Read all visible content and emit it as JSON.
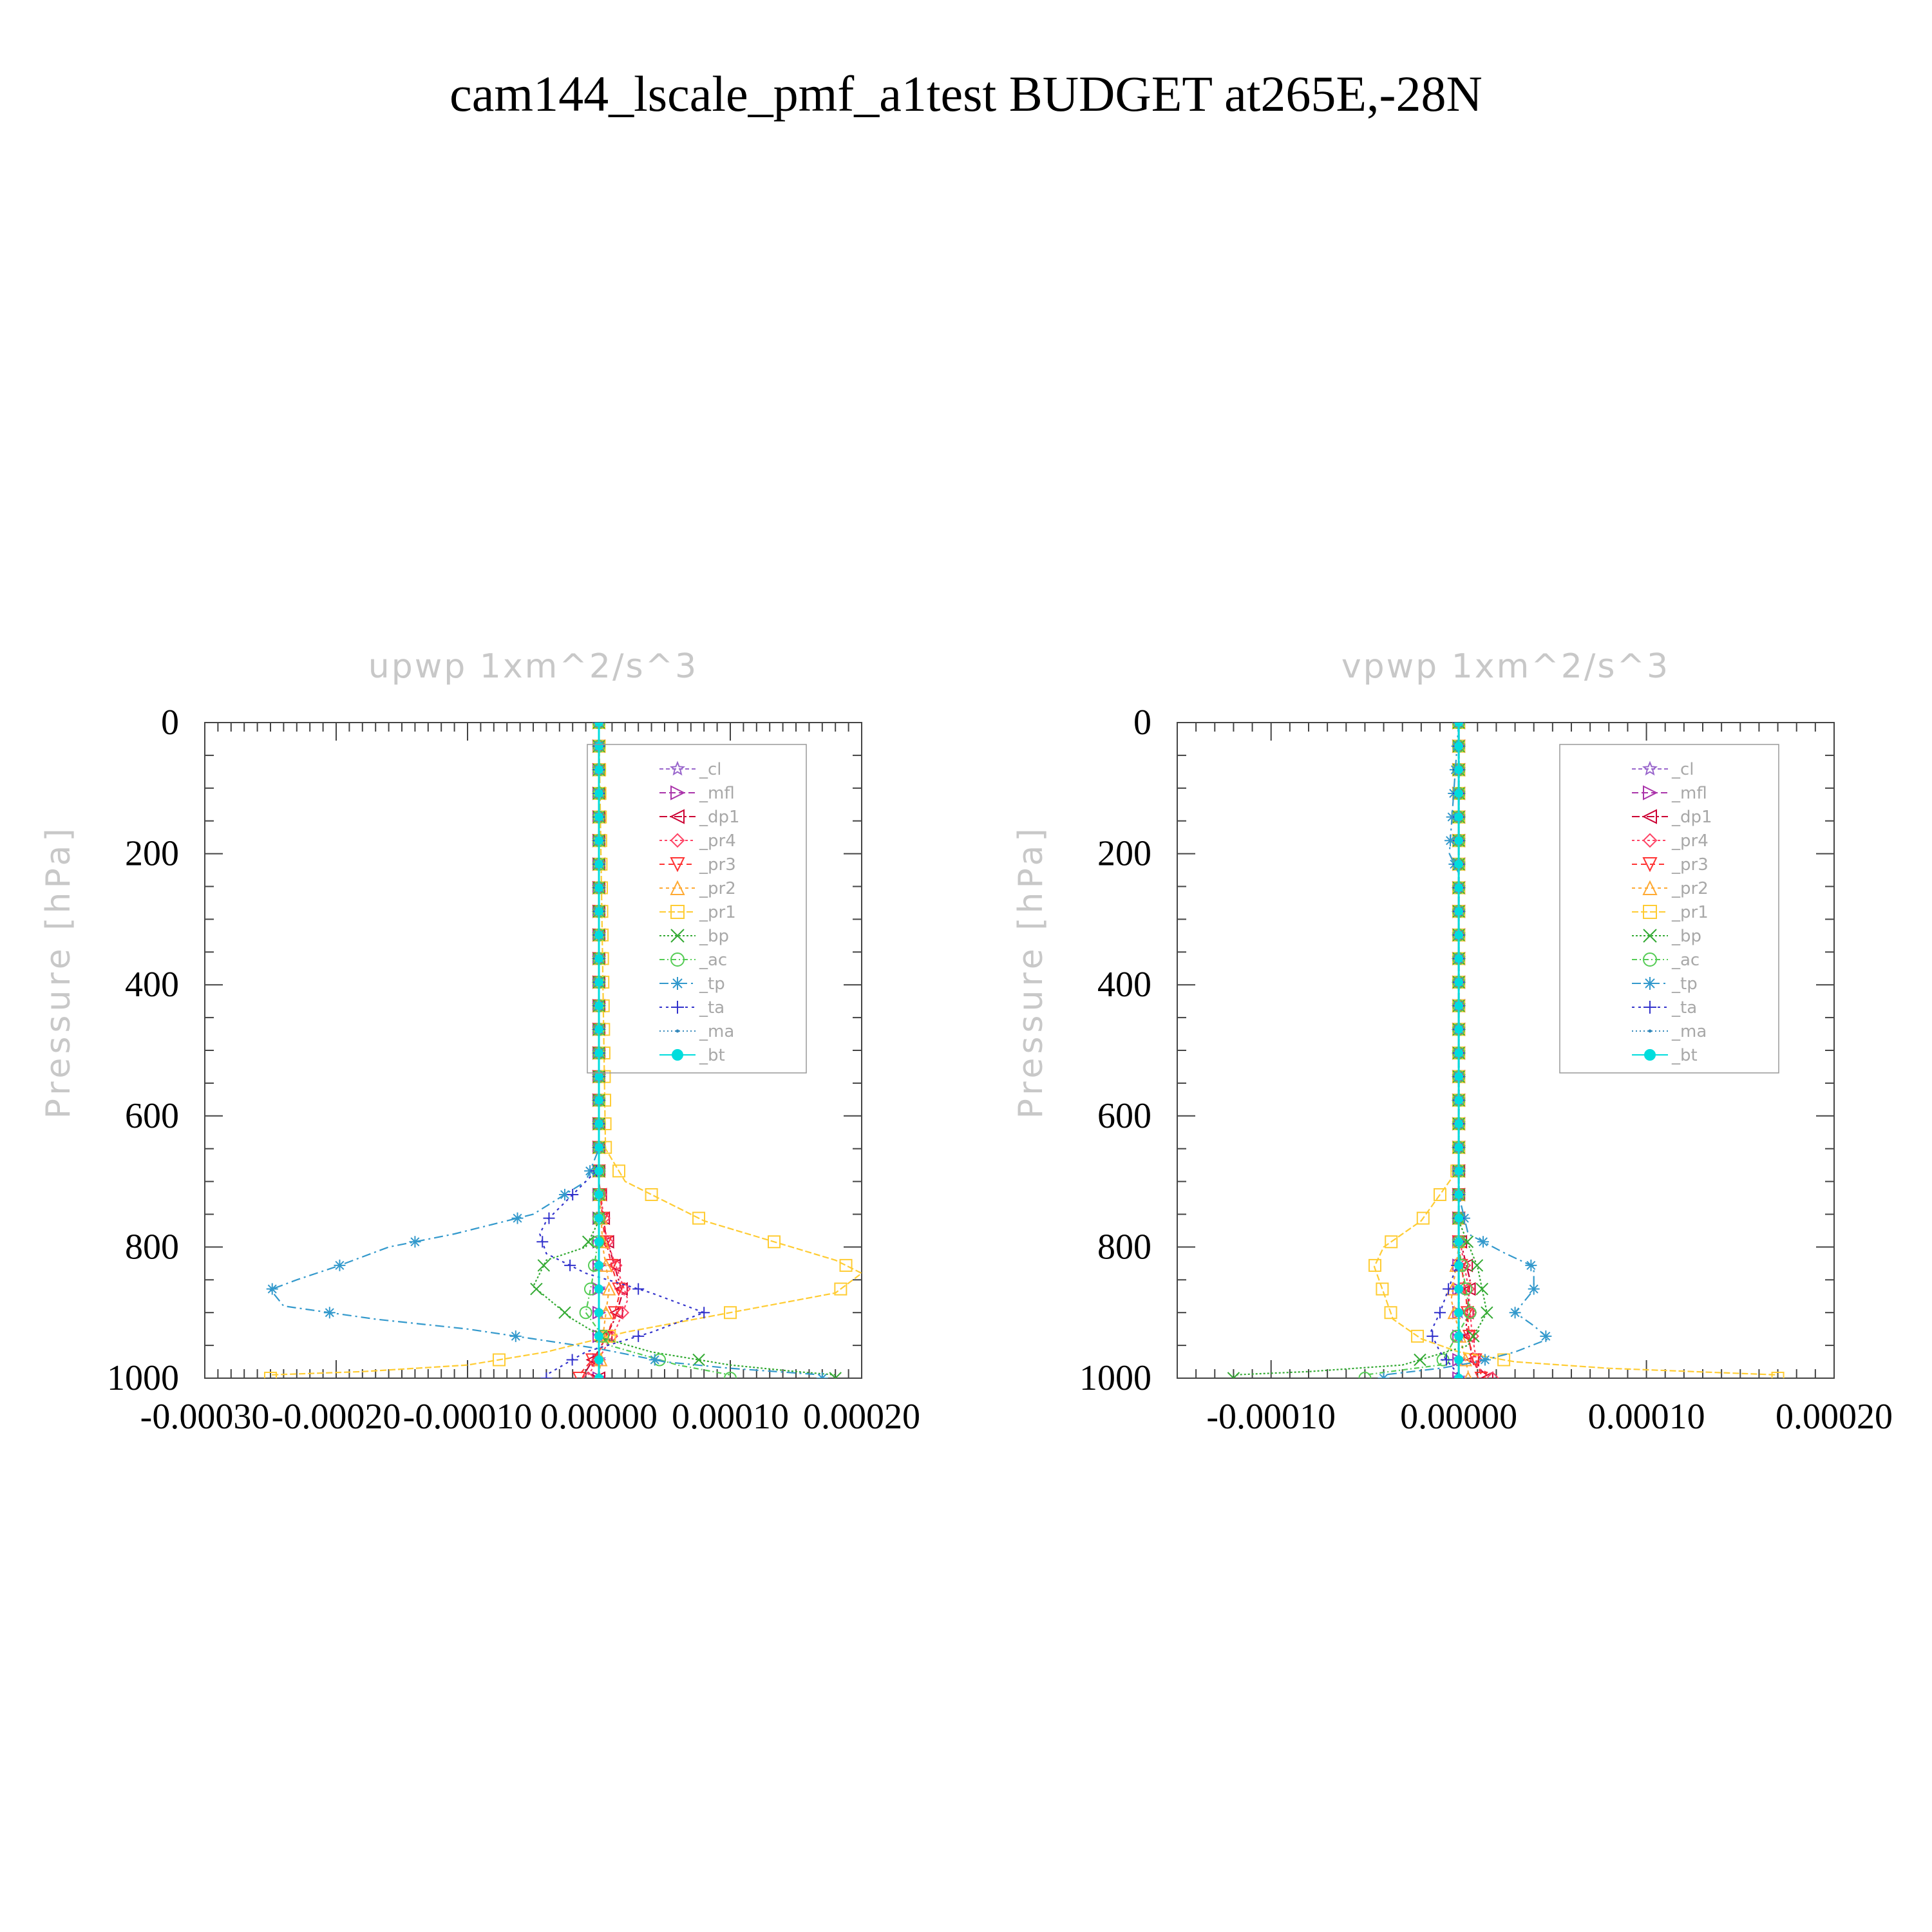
{
  "title": "cam144_lscale_pmf_a1test  BUDGET at265E,-28N",
  "chart_data": [
    {
      "type": "line",
      "title": "upwp   1xm^2/s^3",
      "ylabel": "Pressure [hPa]",
      "xlim": [
        -0.0003,
        0.0002
      ],
      "ylim": [
        0,
        1000
      ],
      "y_inverted": true,
      "xticks": [
        "-0.00030",
        "-0.00020",
        "-0.00010",
        "0.00000",
        "0.00010",
        "0.00020"
      ],
      "yticks": [
        "0",
        "200",
        "400",
        "600",
        "800",
        "1000"
      ],
      "legend": {
        "position": "upper-right"
      },
      "series": [
        {
          "name": "_cl",
          "color": "#9966cc",
          "marker": "star",
          "points": [
            [
              0,
              0
            ],
            [
              0,
              500
            ],
            [
              0,
              1000
            ]
          ]
        },
        {
          "name": "_mfl",
          "color": "#aa33aa",
          "marker": "tri-right",
          "points": [
            [
              0,
              0
            ],
            [
              0,
              500
            ],
            [
              0,
              1000
            ]
          ]
        },
        {
          "name": "_dp1",
          "color": "#cc0033",
          "marker": "tri-left",
          "points": [
            [
              0,
              0
            ],
            [
              0,
              700
            ],
            [
              5e-06,
              780
            ],
            [
              1.2e-05,
              830
            ],
            [
              1.8e-05,
              870
            ],
            [
              1.2e-05,
              910
            ],
            [
              2e-06,
              950
            ],
            [
              -1e-05,
              990
            ],
            [
              0,
              1000
            ]
          ]
        },
        {
          "name": "_pr4",
          "color": "#ff4466",
          "marker": "diamond",
          "points": [
            [
              0,
              0
            ],
            [
              0,
              700
            ],
            [
              6e-06,
              790
            ],
            [
              1.5e-05,
              840
            ],
            [
              2.2e-05,
              880
            ],
            [
              1.4e-05,
              920
            ],
            [
              3e-06,
              960
            ],
            [
              -8e-06,
              995
            ]
          ]
        },
        {
          "name": "_pr3",
          "color": "#ff3333",
          "marker": "tri-down",
          "points": [
            [
              0,
              0
            ],
            [
              0,
              700
            ],
            [
              4e-06,
              780
            ],
            [
              1e-05,
              830
            ],
            [
              1.6e-05,
              870
            ],
            [
              1e-05,
              915
            ],
            [
              0,
              960
            ],
            [
              -1.5e-05,
              995
            ]
          ]
        },
        {
          "name": "_pr2",
          "color": "#ffaa33",
          "marker": "tri-up",
          "points": [
            [
              0,
              0
            ],
            [
              0,
              700
            ],
            [
              3e-06,
              800
            ],
            [
              8e-06,
              860
            ],
            [
              4e-06,
              920
            ],
            [
              0,
              1000
            ]
          ]
        },
        {
          "name": "_pr1",
          "color": "#ffcc33",
          "marker": "square",
          "points": [
            [
              0,
              0
            ],
            [
              5e-06,
              650
            ],
            [
              2e-05,
              700
            ],
            [
              8e-05,
              760
            ],
            [
              0.00013,
              790
            ],
            [
              0.00018,
              820
            ],
            [
              0.0002,
              840
            ],
            [
              0.00018,
              870
            ],
            [
              0.0001,
              900
            ],
            [
              2e-05,
              930
            ],
            [
              -4e-05,
              960
            ],
            [
              -0.0001,
              980
            ],
            [
              -0.00018,
              990
            ],
            [
              -0.00025,
              995
            ]
          ]
        },
        {
          "name": "_bp",
          "color": "#33aa33",
          "marker": "x",
          "points": [
            [
              0,
              0
            ],
            [
              0,
              760
            ],
            [
              -1e-05,
              800
            ],
            [
              -4e-05,
              820
            ],
            [
              -5e-05,
              860
            ],
            [
              -2e-05,
              910
            ],
            [
              5e-06,
              940
            ],
            [
              4e-05,
              960
            ],
            [
              0.0001,
              980
            ],
            [
              0.00015,
              990
            ],
            [
              0.00018,
              995
            ]
          ]
        },
        {
          "name": "_ac",
          "color": "#55cc55",
          "marker": "circle",
          "points": [
            [
              0,
              0
            ],
            [
              0,
              780
            ],
            [
              -5e-06,
              850
            ],
            [
              -1e-05,
              900
            ],
            [
              8e-06,
              950
            ],
            [
              6e-05,
              980
            ],
            [
              0.0001,
              995
            ]
          ]
        },
        {
          "name": "_tp",
          "color": "#3399cc",
          "marker": "asterisk",
          "points": [
            [
              0,
              0
            ],
            [
              0,
              650
            ],
            [
              -1e-05,
              700
            ],
            [
              -5e-05,
              750
            ],
            [
              -0.00011,
              780
            ],
            [
              -0.00016,
              800
            ],
            [
              -0.0002,
              830
            ],
            [
              -0.00023,
              850
            ],
            [
              -0.00025,
              865
            ],
            [
              -0.00024,
              890
            ],
            [
              -0.00017,
              910
            ],
            [
              -0.0001,
              925
            ],
            [
              -5e-05,
              940
            ],
            [
              0,
              955
            ],
            [
              5e-05,
              975
            ],
            [
              0.0001,
              985
            ],
            [
              0.00017,
              995
            ]
          ]
        },
        {
          "name": "_ta",
          "color": "#3333cc",
          "marker": "plus",
          "points": [
            [
              0,
              0
            ],
            [
              0,
              680
            ],
            [
              -2e-05,
              720
            ],
            [
              -4e-05,
              760
            ],
            [
              -4.5e-05,
              780
            ],
            [
              -4e-05,
              810
            ],
            [
              -1e-05,
              840
            ],
            [
              4e-05,
              870
            ],
            [
              8e-05,
              900
            ],
            [
              4e-05,
              930
            ],
            [
              -1e-05,
              960
            ],
            [
              -4e-05,
              995
            ]
          ]
        },
        {
          "name": "_ma",
          "color": "#3388bb",
          "marker": "dot",
          "points": [
            [
              0,
              0
            ],
            [
              0,
              500
            ],
            [
              0,
              1000
            ]
          ]
        },
        {
          "name": "_bt",
          "color": "#00dddd",
          "marker": "filled-circle",
          "points": [
            [
              0,
              0
            ],
            [
              0,
              500
            ],
            [
              0,
              1000
            ]
          ]
        }
      ]
    },
    {
      "type": "line",
      "title": "vpwp   1xm^2/s^3",
      "ylabel": "Pressure [hPa]",
      "xlim": [
        -0.00015,
        0.0002
      ],
      "ylim": [
        0,
        1000
      ],
      "y_inverted": true,
      "xticks": [
        "-0.00010",
        "0.00000",
        "0.00010",
        "0.00020"
      ],
      "yticks": [
        "0",
        "200",
        "400",
        "600",
        "800",
        "1000"
      ],
      "legend": {
        "position": "upper-right"
      },
      "series": [
        {
          "name": "_cl",
          "color": "#9966cc",
          "marker": "star",
          "points": [
            [
              0,
              0
            ],
            [
              0,
              500
            ],
            [
              0,
              1000
            ]
          ]
        },
        {
          "name": "_mfl",
          "color": "#aa33aa",
          "marker": "tri-right",
          "points": [
            [
              0,
              0
            ],
            [
              0,
              500
            ],
            [
              0,
              1000
            ]
          ]
        },
        {
          "name": "_dp1",
          "color": "#cc0033",
          "marker": "tri-left",
          "points": [
            [
              0,
              0
            ],
            [
              0,
              780
            ],
            [
              6e-06,
              850
            ],
            [
              4e-06,
              920
            ],
            [
              8e-06,
              980
            ],
            [
              1.5e-05,
              995
            ]
          ]
        },
        {
          "name": "_pr4",
          "color": "#ff4466",
          "marker": "diamond",
          "points": [
            [
              0,
              0
            ],
            [
              0,
              780
            ],
            [
              5e-06,
              860
            ],
            [
              7e-06,
              930
            ],
            [
              1e-05,
              985
            ],
            [
              1.8e-05,
              995
            ]
          ]
        },
        {
          "name": "_pr3",
          "color": "#ff3333",
          "marker": "tri-down",
          "points": [
            [
              0,
              0
            ],
            [
              0,
              800
            ],
            [
              4e-06,
              880
            ],
            [
              6e-06,
              950
            ],
            [
              1.2e-05,
              995
            ]
          ]
        },
        {
          "name": "_pr2",
          "color": "#ffaa33",
          "marker": "tri-up",
          "points": [
            [
              0,
              0
            ],
            [
              0,
              800
            ],
            [
              -4e-06,
              880
            ],
            [
              5e-06,
              990
            ]
          ]
        },
        {
          "name": "_pr1",
          "color": "#ffcc33",
          "marker": "square",
          "points": [
            [
              0,
              0
            ],
            [
              0,
              680
            ],
            [
              -1e-05,
              720
            ],
            [
              -2e-05,
              760
            ],
            [
              -4e-05,
              800
            ],
            [
              -4.5e-05,
              830
            ],
            [
              -4e-05,
              870
            ],
            [
              -3.5e-05,
              910
            ],
            [
              -2e-05,
              940
            ],
            [
              0,
              960
            ],
            [
              3e-05,
              975
            ],
            [
              8e-05,
              985
            ],
            [
              0.00017,
              995
            ]
          ]
        },
        {
          "name": "_bp",
          "color": "#33aa33",
          "marker": "x",
          "points": [
            [
              0,
              0
            ],
            [
              0,
              760
            ],
            [
              1e-05,
              830
            ],
            [
              1.5e-05,
              900
            ],
            [
              5e-06,
              950
            ],
            [
              -3e-05,
              980
            ],
            [
              -8e-05,
              990
            ],
            [
              -0.00012,
              995
            ]
          ]
        },
        {
          "name": "_ac",
          "color": "#55cc55",
          "marker": "circle",
          "points": [
            [
              0,
              0
            ],
            [
              0,
              800
            ],
            [
              6e-06,
              900
            ],
            [
              -1e-05,
              980
            ],
            [
              -5e-05,
              995
            ]
          ]
        },
        {
          "name": "_tp",
          "color": "#3399cc",
          "marker": "asterisk",
          "points": [
            [
              0,
              0
            ],
            [
              -5e-06,
              200
            ],
            [
              0,
              230
            ],
            [
              0,
              720
            ],
            [
              5e-06,
              780
            ],
            [
              2.5e-05,
              810
            ],
            [
              4e-05,
              830
            ],
            [
              4e-05,
              865
            ],
            [
              3e-05,
              900
            ],
            [
              4e-05,
              920
            ],
            [
              4.8e-05,
              940
            ],
            [
              3e-05,
              960
            ],
            [
              1e-05,
              975
            ],
            [
              -1e-05,
              985
            ],
            [
              -4e-05,
              995
            ]
          ]
        },
        {
          "name": "_ta",
          "color": "#3333cc",
          "marker": "plus",
          "points": [
            [
              0,
              0
            ],
            [
              0,
              820
            ],
            [
              -5e-06,
              860
            ],
            [
              -1e-05,
              900
            ],
            [
              -1.5e-05,
              930
            ],
            [
              -1e-05,
              960
            ],
            [
              0,
              995
            ]
          ]
        },
        {
          "name": "_ma",
          "color": "#3388bb",
          "marker": "dot",
          "points": [
            [
              0,
              0
            ],
            [
              0,
              500
            ],
            [
              0,
              1000
            ]
          ]
        },
        {
          "name": "_bt",
          "color": "#00dddd",
          "marker": "filled-circle",
          "points": [
            [
              0,
              0
            ],
            [
              0,
              500
            ],
            [
              0,
              1000
            ]
          ]
        }
      ]
    }
  ]
}
